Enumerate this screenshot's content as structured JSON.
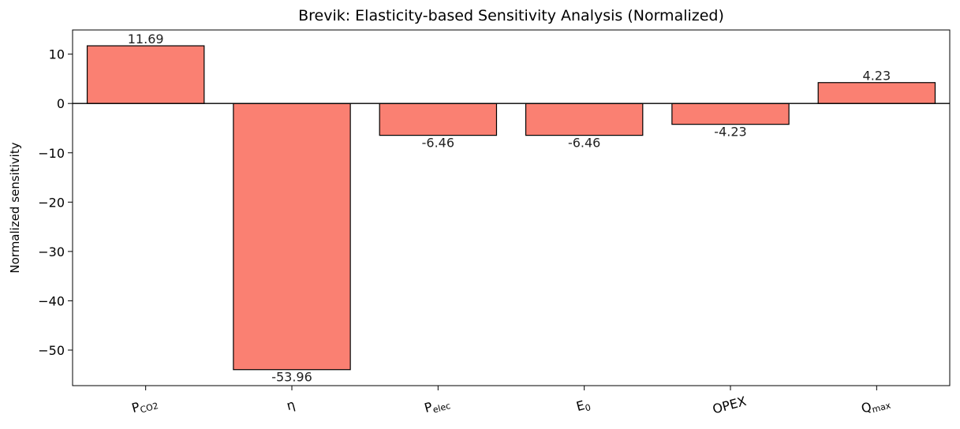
{
  "chart_data": {
    "type": "bar",
    "title": "Brevik: Elasticity-based Sensitivity Analysis (Normalized)",
    "xlabel": "",
    "ylabel": "Normalized sensitivity",
    "categories": [
      {
        "base": "P",
        "sub": "CO2"
      },
      {
        "base": "η",
        "sub": ""
      },
      {
        "base": "P",
        "sub": "elec"
      },
      {
        "base": "E",
        "sub": "0"
      },
      {
        "base": "OPEX",
        "sub": ""
      },
      {
        "base": "Q",
        "sub": "max"
      }
    ],
    "values": [
      11.69,
      -53.96,
      -6.46,
      -6.46,
      -4.23,
      4.23
    ],
    "data_labels": [
      "11.69",
      "-53.96",
      "-6.46",
      "-6.46",
      "-4.23",
      "4.23"
    ],
    "ylim": [
      -57.2,
      14.9
    ],
    "yticks": [
      10,
      0,
      -10,
      -20,
      -30,
      -40,
      -50
    ],
    "ytick_labels": [
      "10",
      "0",
      "−10",
      "−20",
      "−30",
      "−40",
      "−50"
    ],
    "grid": false,
    "legend": "none",
    "colors": {
      "bar_fill": "#fa8072",
      "bar_edge": "#000000",
      "zero_line": "#000000"
    }
  }
}
